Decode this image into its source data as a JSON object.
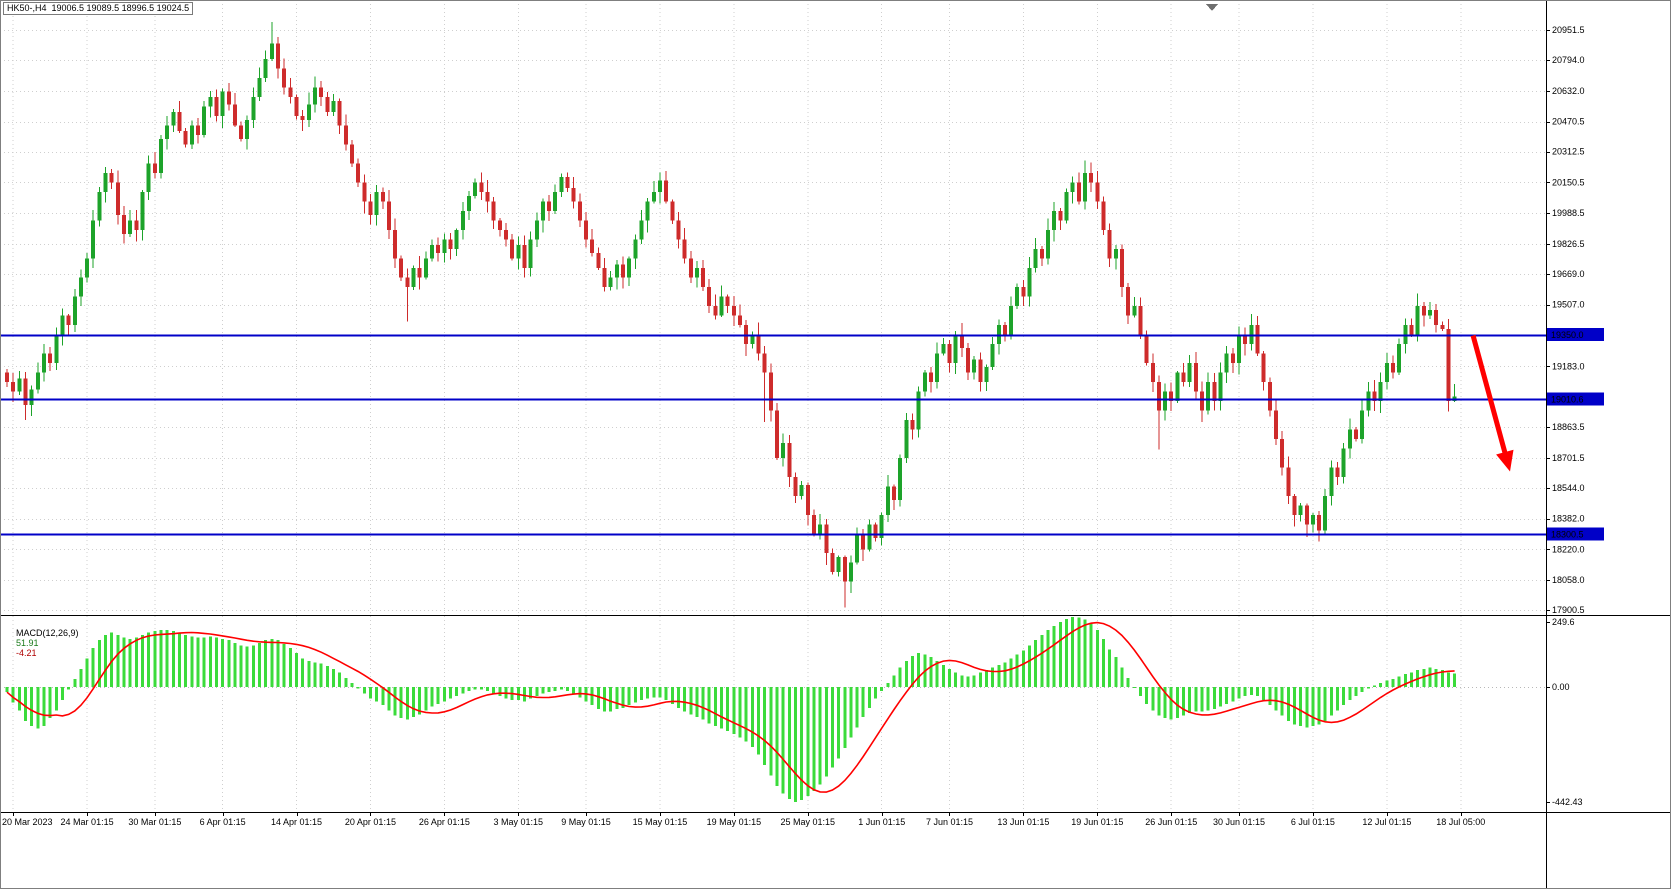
{
  "header": {
    "symbol_label": "HK50-,H4  19006.5 19089.5 18996.5 19024.5"
  },
  "colors": {
    "background": "#FFFFFF",
    "bull": "#1DA32A",
    "bear": "#CE2B2B",
    "wick_bull": "#1DA32A",
    "wick_bear": "#CE2B2B",
    "macd_hist": "#3BDB3B",
    "macd_signal": "#FF0000",
    "level_line": "#0000C8",
    "tag_bg": "#0000C8",
    "tag_text": "#FFFFFF",
    "grid": "#CFCFCF",
    "separator": "#000000",
    "outer_border": "#7F7F7F",
    "axis_text": "#000000",
    "arrow": "#FF0000",
    "shift_marker": "#6E6E6E"
  },
  "price_axis": {
    "labels": [
      "20951.5",
      "20794.0",
      "20632.0",
      "20470.5",
      "20312.5",
      "20150.5",
      "19988.5",
      "19826.5",
      "19669.0",
      "19507.0",
      "19183.0",
      "18863.5",
      "18701.5",
      "18544.0",
      "18382.0",
      "18220.0",
      "18058.0",
      "17900.5"
    ]
  },
  "levels": [
    {
      "label": "19350.0",
      "price": 19350.0
    },
    {
      "label": "19010.6",
      "price": 19010.6
    },
    {
      "label": "18300.5",
      "price": 18300.5
    }
  ],
  "time_axis": {
    "labels": [
      "20 Mar 2023",
      "24 Mar 01:15",
      "30 Mar 01:15",
      "6 Apr 01:15",
      "14 Apr 01:15",
      "20 Apr 01:15",
      "26 Apr 01:15",
      "3 May 01:15",
      "9 May 01:15",
      "15 May 01:15",
      "19 May 01:15",
      "25 May 01:15",
      "1 Jun 01:15",
      "7 Jun 01:15",
      "13 Jun 01:15",
      "19 Jun 01:15",
      "26 Jun 01:15",
      "30 Jun 01:15",
      "6 Jul 01:15",
      "12 Jul 01:15",
      "18 Jul 05:00"
    ],
    "indices": [
      1,
      13,
      24,
      35,
      47,
      59,
      71,
      83,
      94,
      106,
      118,
      130,
      142,
      153,
      165,
      177,
      189,
      200,
      212,
      224,
      236
    ]
  },
  "macd": {
    "label": "MACD(12,26,9)",
    "value_main": "51.91",
    "value_signal": "-4.21",
    "axis_labels": [
      {
        "text": "249.6",
        "value": 249.6
      },
      {
        "text": "0.00",
        "value": 0
      },
      {
        "text": "-442.43",
        "value": -442.43
      }
    ]
  },
  "annotation_arrow": {
    "from_index": 238,
    "from_price": 19345,
    "to_index": 244,
    "to_price": 18630
  },
  "chart_data": {
    "type": "candlestick",
    "symbol": "HK50",
    "timeframe": "H4",
    "title": "HK50-,H4",
    "last_bar": {
      "open": 19006.5,
      "high": 19089.5,
      "low": 18996.5,
      "close": 19024.5
    },
    "y_axis_visible_range": [
      17900.5,
      20951.5
    ],
    "support_resistance_levels": [
      19350.0,
      19010.6,
      18300.5
    ],
    "macd_settings": "MACD(12,26,9)",
    "macd_current": {
      "macd": 51.91,
      "signal": -4.21
    },
    "macd_axis_range": [
      -442.43,
      249.6
    ],
    "first_open": 19150,
    "closes": [
      19100,
      19050,
      19120,
      18980,
      19060,
      19150,
      19250,
      19200,
      19350,
      19450,
      19400,
      19550,
      19650,
      19750,
      19950,
      20100,
      20200,
      20150,
      19980,
      19880,
      19950,
      19900,
      20100,
      20250,
      20200,
      20380,
      20450,
      20520,
      20420,
      20350,
      20450,
      20400,
      20550,
      20600,
      20500,
      20630,
      20560,
      20450,
      20380,
      20480,
      20600,
      20700,
      20800,
      20880,
      20750,
      20650,
      20600,
      20500,
      20480,
      20560,
      20650,
      20600,
      20520,
      20580,
      20450,
      20350,
      20250,
      20150,
      20050,
      19980,
      20100,
      20050,
      19900,
      19750,
      19650,
      19600,
      19700,
      19650,
      19750,
      19820,
      19780,
      19850,
      19800,
      19900,
      20000,
      20080,
      20150,
      20100,
      20050,
      19950,
      19900,
      19850,
      19750,
      19820,
      19700,
      19850,
      19950,
      20050,
      20000,
      20100,
      20180,
      20120,
      20050,
      19950,
      19850,
      19780,
      19700,
      19600,
      19650,
      19720,
      19650,
      19750,
      19850,
      19950,
      20050,
      20100,
      20160,
      20050,
      19950,
      19850,
      19750,
      19650,
      19700,
      19600,
      19500,
      19450,
      19550,
      19500,
      19450,
      19400,
      19300,
      19350,
      19250,
      19150,
      18950,
      18700,
      18780,
      18600,
      18500,
      18560,
      18400,
      18300,
      18350,
      18200,
      18100,
      18180,
      18050,
      18150,
      18300,
      18220,
      18350,
      18280,
      18400,
      18550,
      18480,
      18700,
      18900,
      18850,
      19050,
      19150,
      19100,
      19250,
      19300,
      19200,
      19350,
      19280,
      19150,
      19220,
      19100,
      19180,
      19300,
      19400,
      19350,
      19500,
      19600,
      19550,
      19700,
      19800,
      19750,
      19900,
      20000,
      19950,
      20100,
      20150,
      20050,
      20200,
      20150,
      20050,
      19900,
      19750,
      19800,
      19600,
      19450,
      19500,
      19350,
      19200,
      19100,
      18950,
      19050,
      19000,
      19150,
      19100,
      19200,
      19050,
      18950,
      19100,
      19000,
      19150,
      19250,
      19200,
      19350,
      19300,
      19400,
      19250,
      19100,
      18950,
      18800,
      18650,
      18500,
      18400,
      18450,
      18350,
      18400,
      18320,
      18500,
      18650,
      18600,
      18750,
      18850,
      18800,
      18950,
      19050,
      19000,
      19100,
      19200,
      19150,
      19300,
      19400,
      19350,
      19500,
      19450,
      19480,
      19400,
      19380,
      19000,
      19024.5
    ],
    "wick_overrides": {
      "3": {
        "low": 18900
      },
      "43": {
        "high": 20995
      },
      "65": {
        "low": 19420
      },
      "123": {
        "low": 18890
      },
      "136": {
        "low": 17915
      },
      "175": {
        "high": 20265
      },
      "187": {
        "low": 18745
      },
      "211": {
        "low": 18285
      },
      "229": {
        "high": 19565
      },
      "235": {
        "high": 19089.5,
        "low": 18996.5
      }
    },
    "macd_hist": [
      -20,
      -60,
      -90,
      -130,
      -150,
      -160,
      -150,
      -120,
      -90,
      -50,
      -10,
      30,
      70,
      110,
      150,
      180,
      200,
      210,
      200,
      190,
      185,
      190,
      200,
      210,
      215,
      220,
      220,
      215,
      210,
      200,
      195,
      190,
      190,
      195,
      190,
      185,
      180,
      170,
      160,
      155,
      160,
      170,
      180,
      185,
      180,
      165,
      150,
      130,
      110,
      100,
      95,
      90,
      80,
      70,
      55,
      35,
      15,
      -5,
      -25,
      -45,
      -55,
      -70,
      -90,
      -110,
      -120,
      -125,
      -115,
      -105,
      -90,
      -75,
      -65,
      -55,
      -45,
      -35,
      -25,
      -15,
      -10,
      -10,
      -15,
      -25,
      -35,
      -45,
      -50,
      -50,
      -55,
      -45,
      -35,
      -25,
      -20,
      -15,
      -10,
      -15,
      -25,
      -40,
      -55,
      -70,
      -85,
      -95,
      -95,
      -85,
      -80,
      -70,
      -60,
      -50,
      -45,
      -40,
      -40,
      -50,
      -65,
      -80,
      -95,
      -105,
      -115,
      -125,
      -140,
      -150,
      -160,
      -170,
      -180,
      -195,
      -210,
      -230,
      -260,
      -300,
      -340,
      -380,
      -410,
      -430,
      -442,
      -435,
      -420,
      -400,
      -375,
      -345,
      -310,
      -275,
      -235,
      -195,
      -155,
      -115,
      -80,
      -45,
      -15,
      15,
      45,
      75,
      100,
      120,
      130,
      125,
      115,
      100,
      85,
      70,
      55,
      45,
      40,
      45,
      55,
      65,
      75,
      85,
      95,
      110,
      125,
      140,
      160,
      180,
      200,
      220,
      235,
      250,
      262,
      270,
      268,
      260,
      245,
      220,
      185,
      145,
      115,
      75,
      35,
      0,
      -35,
      -65,
      -90,
      -110,
      -120,
      -125,
      -120,
      -110,
      -100,
      -95,
      -95,
      -90,
      -85,
      -75,
      -65,
      -55,
      -45,
      -35,
      -30,
      -35,
      -50,
      -70,
      -90,
      -110,
      -130,
      -145,
      -150,
      -155,
      -150,
      -145,
      -130,
      -110,
      -90,
      -70,
      -50,
      -35,
      -20,
      -5,
      5,
      15,
      25,
      30,
      40,
      50,
      55,
      65,
      70,
      75,
      70,
      65,
      55,
      51.91
    ]
  }
}
